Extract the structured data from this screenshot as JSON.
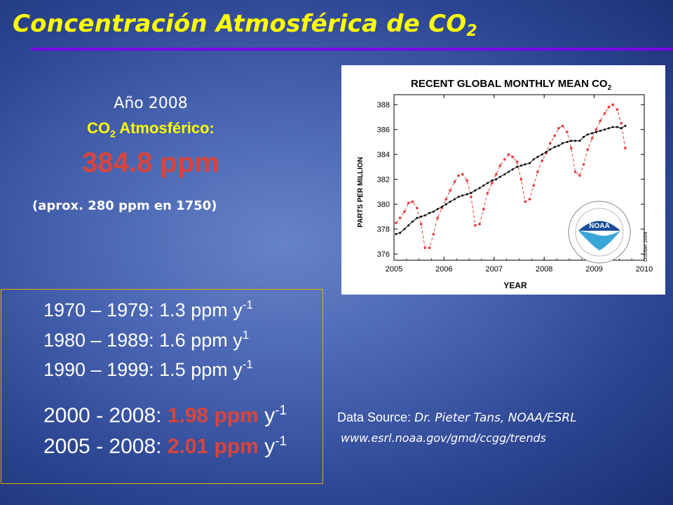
{
  "slide": {
    "title_main": "Concentración Atmosférica de  CO",
    "title_sub": "2",
    "year_label": "Año 2008",
    "co2_prefix": "CO",
    "co2_sub": "2",
    "co2_suffix": "  Atmosférico:",
    "co2_value": "384.8 ppm",
    "approx_note": "(aprox. 280 ppm en 1750)"
  },
  "rates": [
    {
      "period": "1970 – 1979: ",
      "value": "1.3 ppm",
      "unit": " y",
      "exp": "-1"
    },
    {
      "period": "1980 – 1989: ",
      "value": "1.6 ppm",
      "unit": " y",
      "exp": "1"
    },
    {
      "period": "1990 – 1999: ",
      "value": "1.5 ppm",
      "unit": " y",
      "exp": "-1"
    },
    {
      "period": "2000 - 2008:  ",
      "value": "1.98 ppm",
      "unit": " y",
      "exp": "-1"
    },
    {
      "period": "2005 - 2008:  ",
      "value": "2.01 ppm",
      "unit": " y",
      "exp": "-1"
    }
  ],
  "source": {
    "label": "Data Source: ",
    "name": "Dr. Pieter Tans, NOAA/ESRL",
    "url": "www.esrl.noaa.gov/gmd/ccgg/trends"
  },
  "chart_data": {
    "type": "line",
    "title": "RECENT GLOBAL MONTHLY MEAN CO",
    "title_sub": "2",
    "xlabel": "YEAR",
    "ylabel": "PARTS PER MILLION",
    "xlim": [
      2005,
      2010
    ],
    "ylim": [
      375.5,
      388.8
    ],
    "x_ticks": [
      2005,
      2006,
      2007,
      2008,
      2009,
      2010
    ],
    "y_ticks": [
      376,
      378,
      380,
      382,
      384,
      386,
      388
    ],
    "logo_text": "NOAA",
    "date_note": "October 2009",
    "series": [
      {
        "color": "#e8393a",
        "style": "dashed",
        "x": [
          2005.04,
          2005.12,
          2005.21,
          2005.29,
          2005.37,
          2005.46,
          2005.54,
          2005.62,
          2005.71,
          2005.79,
          2005.87,
          2005.96,
          2006.04,
          2006.12,
          2006.21,
          2006.29,
          2006.37,
          2006.46,
          2006.54,
          2006.62,
          2006.71,
          2006.79,
          2006.87,
          2006.96,
          2007.04,
          2007.12,
          2007.21,
          2007.29,
          2007.37,
          2007.46,
          2007.54,
          2007.62,
          2007.71,
          2007.79,
          2007.87,
          2007.96,
          2008.04,
          2008.12,
          2008.21,
          2008.29,
          2008.37,
          2008.46,
          2008.54,
          2008.62,
          2008.71,
          2008.79,
          2008.87,
          2008.96,
          2009.04,
          2009.12,
          2009.21,
          2009.29,
          2009.37,
          2009.46,
          2009.54,
          2009.62
        ],
        "values": [
          378.5,
          378.9,
          379.4,
          380.1,
          380.2,
          379.7,
          378.4,
          376.5,
          376.5,
          377.6,
          378.9,
          379.7,
          380.4,
          381.1,
          381.8,
          382.3,
          382.4,
          381.9,
          380.6,
          378.3,
          378.4,
          379.6,
          380.9,
          381.7,
          382.4,
          383.1,
          383.6,
          384.0,
          383.8,
          383.4,
          382.0,
          380.2,
          380.4,
          381.5,
          382.6,
          383.5,
          384.1,
          384.9,
          385.5,
          386.1,
          386.3,
          385.8,
          384.5,
          382.6,
          382.3,
          383.2,
          384.4,
          385.3,
          386.0,
          386.7,
          387.3,
          387.8,
          388.0,
          387.6,
          386.5,
          384.5
        ]
      },
      {
        "color": "#000000",
        "style": "solid",
        "x": [
          2005.04,
          2005.12,
          2005.21,
          2005.29,
          2005.37,
          2005.46,
          2005.54,
          2005.62,
          2005.71,
          2005.79,
          2005.87,
          2005.96,
          2006.04,
          2006.12,
          2006.21,
          2006.29,
          2006.37,
          2006.46,
          2006.54,
          2006.62,
          2006.71,
          2006.79,
          2006.87,
          2006.96,
          2007.04,
          2007.12,
          2007.21,
          2007.29,
          2007.37,
          2007.46,
          2007.54,
          2007.62,
          2007.71,
          2007.79,
          2007.87,
          2007.96,
          2008.04,
          2008.12,
          2008.21,
          2008.29,
          2008.37,
          2008.46,
          2008.54,
          2008.62,
          2008.71,
          2008.79,
          2008.87,
          2008.96,
          2009.04,
          2009.12,
          2009.21,
          2009.29,
          2009.37,
          2009.46,
          2009.54,
          2009.62
        ],
        "values": [
          377.6,
          377.7,
          378.0,
          378.3,
          378.6,
          378.9,
          379.0,
          379.1,
          379.3,
          379.4,
          379.6,
          379.8,
          380.0,
          380.2,
          380.4,
          380.6,
          380.7,
          380.8,
          380.9,
          381.1,
          381.3,
          381.5,
          381.7,
          381.9,
          382.0,
          382.2,
          382.4,
          382.6,
          382.8,
          383.0,
          383.1,
          383.2,
          383.3,
          383.6,
          383.8,
          384.0,
          384.2,
          384.4,
          384.6,
          384.7,
          384.9,
          385.0,
          385.1,
          385.1,
          385.1,
          385.4,
          385.6,
          385.7,
          385.8,
          385.9,
          386.0,
          386.1,
          386.2,
          386.2,
          386.1,
          386.3
        ]
      }
    ]
  }
}
